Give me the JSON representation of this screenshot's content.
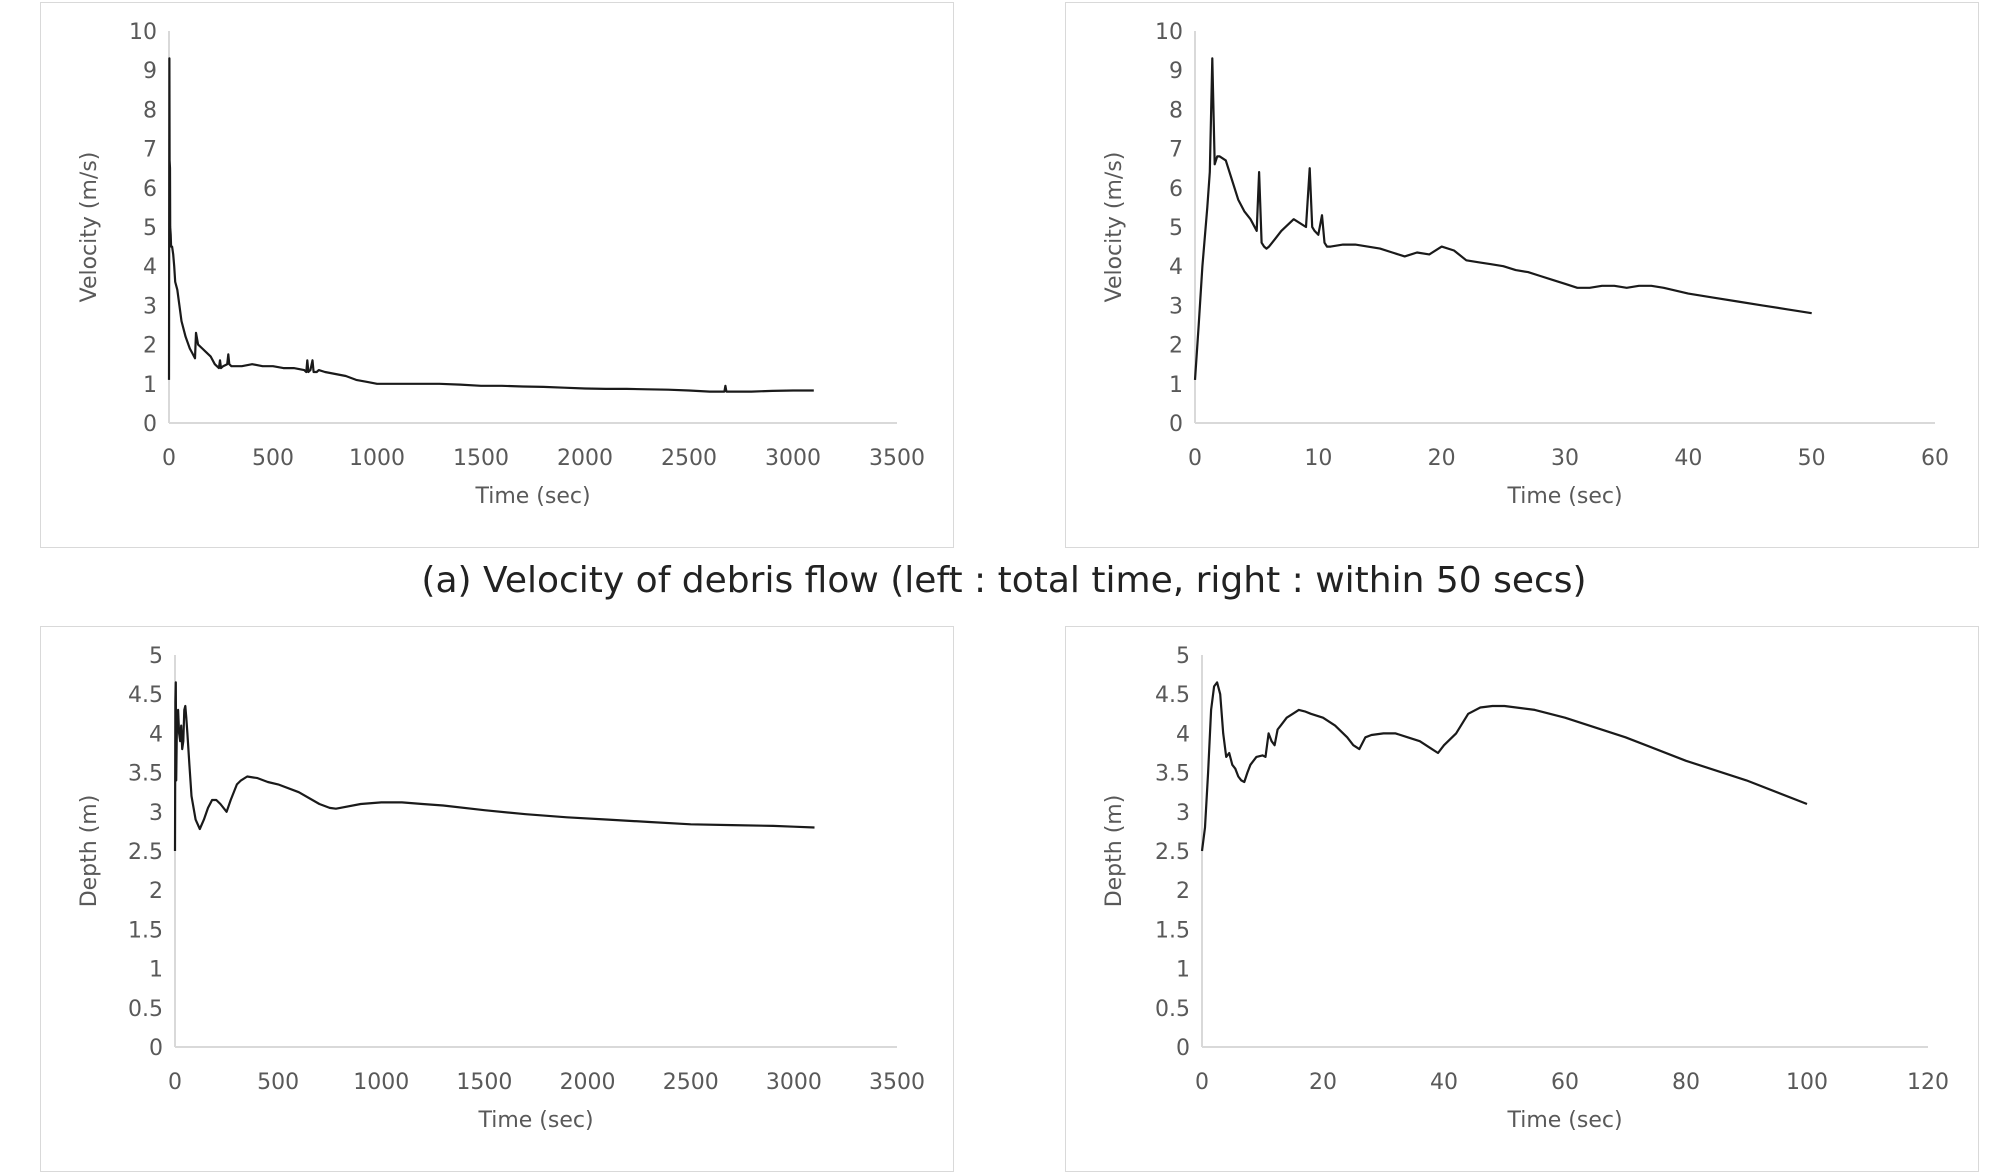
{
  "caption": "(a) Velocity of debris flow (left : total time, right : within 50 secs)",
  "chart_data": [
    {
      "id": "velocity-total",
      "type": "line",
      "title": "",
      "xlabel": "Time (sec)",
      "ylabel": "Velocity (m/s)",
      "xlim": [
        0,
        3500
      ],
      "ylim": [
        0,
        10
      ],
      "xticks": [
        0,
        500,
        1000,
        1500,
        2000,
        2500,
        3000,
        3500
      ],
      "yticks": [
        0,
        1,
        2,
        3,
        4,
        5,
        6,
        7,
        8,
        9,
        10
      ],
      "ytick_labels": [
        "0",
        "1",
        "2",
        "3",
        "4",
        "5",
        "6",
        "7",
        "8",
        "9",
        "10"
      ],
      "grid": false,
      "series": [
        {
          "name": "Velocity",
          "x": [
            0,
            2,
            3,
            5,
            6,
            8,
            10,
            15,
            20,
            25,
            30,
            40,
            50,
            60,
            80,
            100,
            110,
            120,
            125,
            130,
            140,
            160,
            180,
            200,
            220,
            240,
            245,
            250,
            260,
            280,
            285,
            290,
            300,
            350,
            400,
            450,
            500,
            550,
            600,
            650,
            660,
            665,
            670,
            680,
            690,
            695,
            700,
            710,
            720,
            750,
            800,
            850,
            900,
            950,
            1000,
            1050,
            1100,
            1200,
            1300,
            1400,
            1500,
            1600,
            1700,
            1800,
            1900,
            2000,
            2100,
            2200,
            2300,
            2400,
            2500,
            2600,
            2650,
            2670,
            2675,
            2680,
            2700,
            2800,
            2900,
            3000,
            3100
          ],
          "y": [
            1.1,
            9.3,
            6.7,
            6.5,
            5.0,
            4.8,
            4.5,
            4.5,
            4.3,
            4.0,
            3.6,
            3.4,
            3.0,
            2.6,
            2.2,
            1.9,
            1.8,
            1.7,
            1.65,
            2.3,
            2.0,
            1.9,
            1.8,
            1.7,
            1.5,
            1.4,
            1.6,
            1.4,
            1.45,
            1.5,
            1.75,
            1.5,
            1.45,
            1.45,
            1.5,
            1.45,
            1.45,
            1.4,
            1.4,
            1.35,
            1.3,
            1.6,
            1.3,
            1.35,
            1.6,
            1.3,
            1.3,
            1.3,
            1.35,
            1.3,
            1.25,
            1.2,
            1.1,
            1.05,
            1.0,
            1.0,
            1.0,
            1.0,
            1.0,
            0.98,
            0.95,
            0.95,
            0.93,
            0.92,
            0.9,
            0.88,
            0.87,
            0.87,
            0.86,
            0.85,
            0.83,
            0.8,
            0.8,
            0.8,
            0.95,
            0.8,
            0.8,
            0.8,
            0.82,
            0.83,
            0.83
          ]
        }
      ]
    },
    {
      "id": "velocity-50s",
      "type": "line",
      "title": "",
      "xlabel": "Time (sec)",
      "ylabel": "Velocity (m/s)",
      "xlim": [
        0,
        60
      ],
      "ylim": [
        0,
        10
      ],
      "xticks": [
        0,
        10,
        20,
        30,
        40,
        50,
        60
      ],
      "yticks": [
        0,
        1,
        2,
        3,
        4,
        5,
        6,
        7,
        8,
        9,
        10
      ],
      "ytick_labels": [
        "0",
        "1",
        "2",
        "3",
        "4",
        "5",
        "6",
        "7",
        "8",
        "9",
        "10"
      ],
      "grid": false,
      "series": [
        {
          "name": "Velocity",
          "x": [
            0,
            0.3,
            0.6,
            1.0,
            1.2,
            1.4,
            1.6,
            1.8,
            2.0,
            2.5,
            3.0,
            3.5,
            4.0,
            4.5,
            5.0,
            5.2,
            5.4,
            5.6,
            5.8,
            6.0,
            6.5,
            7.0,
            8.0,
            9.0,
            9.3,
            9.5,
            9.7,
            10.0,
            10.3,
            10.5,
            10.7,
            11.0,
            12.0,
            13.0,
            14.0,
            15.0,
            16.0,
            17.0,
            18.0,
            19.0,
            20.0,
            21.0,
            22.0,
            23.0,
            24.0,
            25.0,
            26.0,
            27.0,
            28.0,
            29.0,
            30.0,
            31.0,
            32.0,
            33.0,
            34.0,
            35.0,
            36.0,
            37.0,
            38.0,
            40.0,
            42.0,
            44.0,
            46.0,
            48.0,
            50.0
          ],
          "y": [
            1.1,
            2.5,
            4.0,
            5.5,
            6.4,
            9.3,
            6.6,
            6.8,
            6.8,
            6.7,
            6.2,
            5.7,
            5.4,
            5.2,
            4.9,
            6.4,
            4.6,
            4.5,
            4.45,
            4.5,
            4.7,
            4.9,
            5.2,
            5.0,
            6.5,
            5.0,
            4.9,
            4.8,
            5.3,
            4.6,
            4.5,
            4.5,
            4.55,
            4.55,
            4.5,
            4.45,
            4.35,
            4.25,
            4.35,
            4.3,
            4.5,
            4.4,
            4.15,
            4.1,
            4.05,
            4.0,
            3.9,
            3.85,
            3.75,
            3.65,
            3.55,
            3.45,
            3.45,
            3.5,
            3.5,
            3.45,
            3.5,
            3.5,
            3.45,
            3.3,
            3.2,
            3.1,
            3.0,
            2.9,
            2.8
          ]
        }
      ]
    },
    {
      "id": "depth-total",
      "type": "line",
      "title": "",
      "xlabel": "Time (sec)",
      "ylabel": "Depth (m)",
      "xlim": [
        0,
        3500
      ],
      "ylim": [
        0,
        5
      ],
      "xticks": [
        0,
        500,
        1000,
        1500,
        2000,
        2500,
        3000,
        3500
      ],
      "yticks": [
        0,
        0.5,
        1,
        1.5,
        2,
        2.5,
        3,
        3.5,
        4,
        4.5,
        5
      ],
      "ytick_labels": [
        "0",
        "0.5",
        "1",
        "1.5",
        "2",
        "2.5",
        "3",
        "3.5",
        "4",
        "4.5",
        "5"
      ],
      "grid": false,
      "series": [
        {
          "name": "Depth",
          "x": [
            0,
            2,
            4,
            6,
            8,
            10,
            15,
            20,
            25,
            30,
            35,
            40,
            45,
            50,
            55,
            60,
            70,
            80,
            100,
            120,
            140,
            160,
            180,
            200,
            220,
            250,
            270,
            300,
            320,
            350,
            400,
            450,
            500,
            600,
            700,
            750,
            780,
            800,
            900,
            1000,
            1100,
            1200,
            1300,
            1500,
            1700,
            1900,
            2100,
            2300,
            2500,
            2700,
            2900,
            3000,
            3100
          ],
          "y": [
            2.5,
            4.4,
            4.65,
            3.4,
            3.9,
            4.2,
            4.3,
            4.0,
            3.9,
            4.1,
            3.8,
            3.9,
            4.3,
            4.35,
            4.2,
            4.0,
            3.6,
            3.2,
            2.9,
            2.78,
            2.9,
            3.05,
            3.15,
            3.15,
            3.1,
            3.0,
            3.15,
            3.35,
            3.4,
            3.45,
            3.43,
            3.38,
            3.35,
            3.25,
            3.1,
            3.05,
            3.04,
            3.05,
            3.1,
            3.12,
            3.12,
            3.1,
            3.08,
            3.02,
            2.97,
            2.93,
            2.9,
            2.87,
            2.84,
            2.83,
            2.82,
            2.81,
            2.8
          ]
        }
      ]
    },
    {
      "id": "depth-100s",
      "type": "line",
      "title": "",
      "xlabel": "Time (sec)",
      "ylabel": "Depth (m)",
      "xlim": [
        0,
        120
      ],
      "ylim": [
        0,
        5
      ],
      "xticks": [
        0,
        20,
        40,
        60,
        80,
        100,
        120
      ],
      "yticks": [
        0,
        0.5,
        1,
        1.5,
        2,
        2.5,
        3,
        3.5,
        4,
        4.5,
        5
      ],
      "ytick_labels": [
        "0",
        "0.5",
        "1",
        "1.5",
        "2",
        "2.5",
        "3",
        "3.5",
        "4",
        "4.5",
        "5"
      ],
      "grid": false,
      "series": [
        {
          "name": "Depth",
          "x": [
            0,
            0.5,
            1,
            1.5,
            2,
            2.5,
            3,
            3.5,
            4,
            4.5,
            5,
            5.5,
            6,
            6.5,
            7,
            7.5,
            8,
            9,
            10,
            10.5,
            11,
            11.5,
            12,
            12.5,
            13,
            14,
            15,
            16,
            17,
            18,
            20,
            22,
            24,
            25,
            26,
            27,
            28,
            30,
            32,
            34,
            36,
            38,
            39,
            40,
            42,
            44,
            46,
            48,
            50,
            55,
            60,
            70,
            80,
            90,
            100
          ],
          "y": [
            2.5,
            2.8,
            3.5,
            4.3,
            4.6,
            4.65,
            4.5,
            4.0,
            3.7,
            3.75,
            3.6,
            3.55,
            3.45,
            3.4,
            3.38,
            3.5,
            3.6,
            3.7,
            3.72,
            3.7,
            4.0,
            3.9,
            3.85,
            4.05,
            4.1,
            4.2,
            4.25,
            4.3,
            4.28,
            4.25,
            4.2,
            4.1,
            3.95,
            3.85,
            3.8,
            3.95,
            3.98,
            4.0,
            4.0,
            3.95,
            3.9,
            3.8,
            3.75,
            3.85,
            4.0,
            4.25,
            4.33,
            4.35,
            4.35,
            4.3,
            4.2,
            3.95,
            3.65,
            3.4,
            3.1
          ]
        }
      ]
    }
  ]
}
